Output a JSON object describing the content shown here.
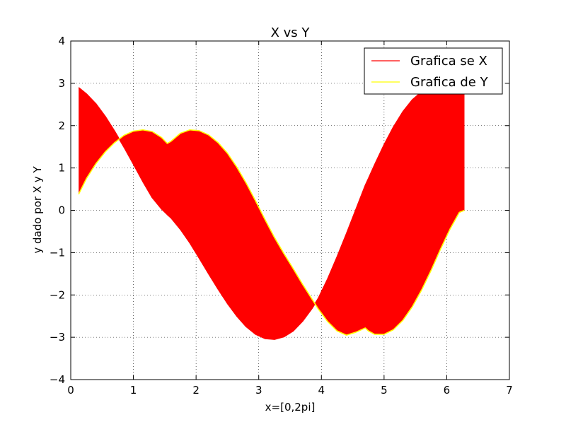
{
  "chart_data": {
    "type": "area",
    "title": "X vs Y",
    "xlabel": "x=[0,2pi]",
    "ylabel": "y dado por X y Y",
    "xlim": [
      0,
      7
    ],
    "ylim": [
      -4,
      4
    ],
    "xticks": [
      0,
      1,
      2,
      3,
      4,
      5,
      6,
      7
    ],
    "yticks": [
      -4,
      -3,
      -2,
      -1,
      0,
      1,
      2,
      3,
      4
    ],
    "xtick_labels": [
      "0",
      "1",
      "2",
      "3",
      "4",
      "5",
      "6",
      "7"
    ],
    "ytick_labels": [
      "−4",
      "−3",
      "−2",
      "−1",
      "0",
      "1",
      "2",
      "3",
      "4"
    ],
    "grid": true,
    "fill_between_series": "red",
    "legend_position": "top-right",
    "x": [
      0.126,
      0.25,
      0.4,
      0.55,
      0.7,
      0.85,
      1.0,
      1.15,
      1.3,
      1.45,
      1.54,
      1.6,
      1.75,
      1.9,
      2.05,
      2.2,
      2.35,
      2.5,
      2.65,
      2.8,
      2.95,
      3.1,
      3.25,
      3.4,
      3.55,
      3.7,
      3.85,
      3.95,
      4.1,
      4.25,
      4.4,
      4.55,
      4.7,
      4.75,
      4.85,
      5.0,
      5.15,
      5.3,
      5.45,
      5.6,
      5.75,
      5.9,
      6.05,
      6.2,
      6.283
    ],
    "series": [
      {
        "name": "Grafica se X",
        "color": "#ff0000",
        "values": [
          2.9,
          2.75,
          2.52,
          2.22,
          1.87,
          1.49,
          1.09,
          0.68,
          0.3,
          0.03,
          -0.1,
          -0.18,
          -0.45,
          -0.77,
          -1.13,
          -1.5,
          -1.86,
          -2.2,
          -2.5,
          -2.75,
          -2.93,
          -3.03,
          -3.05,
          -2.99,
          -2.85,
          -2.62,
          -2.32,
          -2.08,
          -1.62,
          -1.1,
          -0.55,
          0.02,
          0.59,
          0.75,
          1.08,
          1.55,
          1.97,
          2.33,
          2.61,
          2.8,
          2.9,
          2.95,
          2.92,
          2.9,
          2.9
        ]
      },
      {
        "name": "Grafica de Y",
        "color": "#ffff00",
        "values": [
          0.38,
          0.75,
          1.1,
          1.38,
          1.6,
          1.77,
          1.87,
          1.9,
          1.86,
          1.72,
          1.58,
          1.63,
          1.82,
          1.9,
          1.88,
          1.78,
          1.6,
          1.35,
          1.02,
          0.64,
          0.22,
          -0.22,
          -0.64,
          -1.02,
          -1.38,
          -1.75,
          -2.1,
          -2.33,
          -2.63,
          -2.85,
          -2.95,
          -2.88,
          -2.78,
          -2.85,
          -2.93,
          -2.93,
          -2.82,
          -2.6,
          -2.28,
          -1.88,
          -1.42,
          -0.92,
          -0.45,
          -0.05,
          0.0
        ]
      }
    ]
  }
}
